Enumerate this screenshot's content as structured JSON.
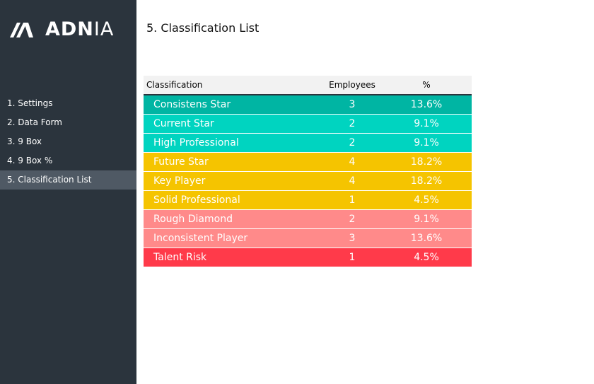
{
  "logo": {
    "text_bold": "ADN",
    "text_light": "IA"
  },
  "sidebar": {
    "items": [
      {
        "label": "1. Settings",
        "active": false
      },
      {
        "label": "2. Data Form",
        "active": false
      },
      {
        "label": "3. 9 Box",
        "active": false
      },
      {
        "label": "4. 9 Box %",
        "active": false
      },
      {
        "label": "5. Classification List",
        "active": true
      }
    ]
  },
  "main": {
    "title": "5. Classification List"
  },
  "table": {
    "headers": {
      "classification": "Classification",
      "employees": "Employees",
      "percent": "%"
    },
    "rows": [
      {
        "classification": "Consistens Star",
        "employees": "3",
        "percent": "13.6%",
        "color": "#00b5a3"
      },
      {
        "classification": "Current Star",
        "employees": "2",
        "percent": "9.1%",
        "color": "#00d4c0"
      },
      {
        "classification": "High Professional",
        "employees": "2",
        "percent": "9.1%",
        "color": "#00d4c0"
      },
      {
        "classification": "Future Star",
        "employees": "4",
        "percent": "18.2%",
        "color": "#f5c400"
      },
      {
        "classification": "Key Player",
        "employees": "4",
        "percent": "18.2%",
        "color": "#f5c400"
      },
      {
        "classification": "Solid Professional",
        "employees": "1",
        "percent": "4.5%",
        "color": "#f5c400"
      },
      {
        "classification": "Rough Diamond",
        "employees": "2",
        "percent": "9.1%",
        "color": "#ff8a8a"
      },
      {
        "classification": "Inconsistent Player",
        "employees": "3",
        "percent": "13.6%",
        "color": "#ff8a8a"
      },
      {
        "classification": "Talent Risk",
        "employees": "1",
        "percent": "4.5%",
        "color": "#ff3a4a"
      }
    ]
  },
  "colors": {
    "sidebar_bg": "#2b343d",
    "sidebar_active": "#4f5964",
    "header_bg": "#f2f2f2"
  }
}
